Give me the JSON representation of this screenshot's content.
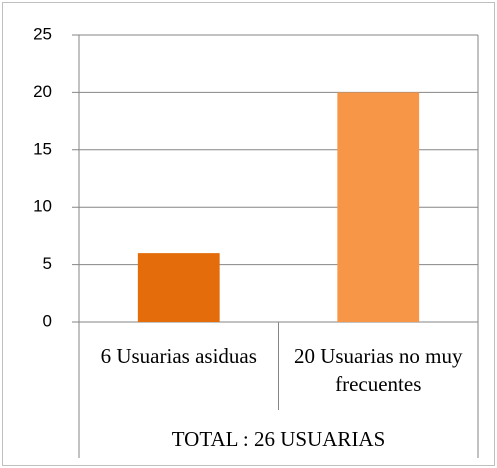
{
  "chart_data": {
    "type": "bar",
    "categories": [
      "6 Usuarias asiduas",
      "20 Usuarias no muy frecuentes"
    ],
    "group_label": "TOTAL : 26 USUARIAS",
    "values": [
      6,
      20
    ],
    "colors": [
      "#e46c0a",
      "#f79646"
    ],
    "ylim": [
      0,
      25
    ],
    "yticks": [
      0,
      5,
      10,
      15,
      20,
      25
    ],
    "grid": true
  }
}
